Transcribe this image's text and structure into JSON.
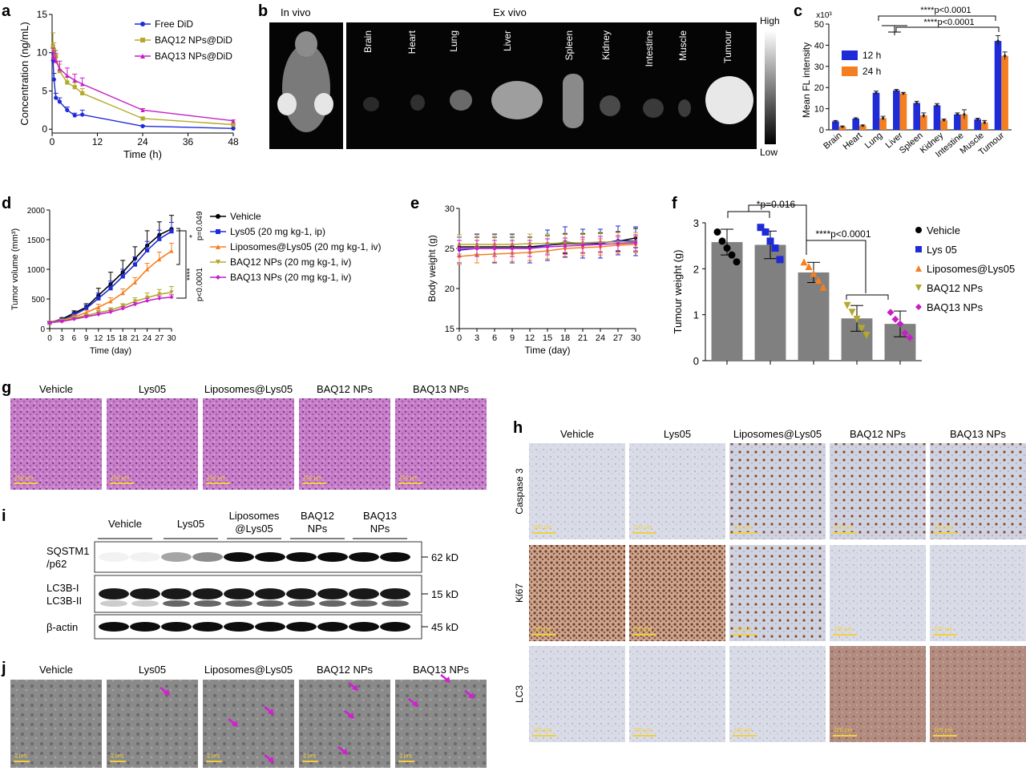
{
  "panels": {
    "a": "a",
    "b": "b",
    "c": "c",
    "d": "d",
    "e": "e",
    "f": "f",
    "g": "g",
    "h": "h",
    "i": "i",
    "j": "j"
  },
  "colors": {
    "blue": "#1f2bd6",
    "olive": "#b5a92a",
    "magenta": "#c61fc6",
    "orange": "#f57f20",
    "black": "#000000",
    "fblue": "#1f2bd6",
    "forange": "#f57f20",
    "bar": "#808080"
  },
  "panel_b": {
    "in_vivo": "In vivo",
    "ex_vivo": "Ex vivo",
    "organs": [
      "Brain",
      "Heart",
      "Lung",
      "Liver",
      "Spleen",
      "Kidney",
      "Intestine",
      "Muscle",
      "Tumour"
    ],
    "scale_high": "High",
    "scale_low": "Low"
  },
  "panel_g": {
    "labels": [
      "Vehicle",
      "Lys05",
      "Liposomes@Lys05",
      "BAQ12 NPs",
      "BAQ13 NPs"
    ],
    "scalebar": "100 μm"
  },
  "panel_h": {
    "columns": [
      "Vehicle",
      "Lys05",
      "Liposomes@Lys05",
      "BAQ12 NPs",
      "BAQ13 NPs"
    ],
    "rows": [
      "Caspase 3",
      "Ki67",
      "LC3"
    ],
    "scalebar": "100 μm"
  },
  "panel_i": {
    "groups": [
      "Vehicle",
      "Lys05",
      "Liposomes\n@Lys05",
      "BAQ12\nNPs",
      "BAQ13\nNPs"
    ],
    "rows": [
      {
        "label": "SQSTM1\n/p62",
        "size": "62 kD"
      },
      {
        "label": "LC3B-I\nLC3B-II",
        "size": "15 kD"
      },
      {
        "label": "β-actin",
        "size": "45 kD"
      }
    ]
  },
  "panel_j": {
    "labels": [
      "Vehicle",
      "Lys05",
      "Liposomes@Lys05",
      "BAQ12 NPs",
      "BAQ13 NPs"
    ],
    "scalebar": "2 μm"
  },
  "chart_data": [
    {
      "panel": "a",
      "type": "line",
      "xlabel": "Time (h)",
      "ylabel": "Concentration (ng/mL)",
      "xlim": [
        0,
        48
      ],
      "ylim": [
        0,
        15
      ],
      "xticks": [
        0,
        12,
        24,
        36,
        48
      ],
      "yticks": [
        0,
        5,
        10,
        15
      ],
      "legend_position": "top-right",
      "series": [
        {
          "name": "Free DiD",
          "color": "blue",
          "x": [
            0.25,
            0.5,
            1,
            2,
            4,
            6,
            8,
            24,
            48
          ],
          "y": [
            9.0,
            6.5,
            4.1,
            3.6,
            2.5,
            1.8,
            1.9,
            0.4,
            0.1
          ],
          "err": [
            1.0,
            0.8,
            0.6,
            0.5,
            0.4,
            0.3,
            0.6,
            0.1,
            0.05
          ]
        },
        {
          "name": "BAQ12 NPs@DiD",
          "color": "olive",
          "x": [
            0.25,
            0.5,
            1,
            2,
            4,
            6,
            8,
            24,
            48
          ],
          "y": [
            10.8,
            10.3,
            9.5,
            7.6,
            6.1,
            5.5,
            4.7,
            1.4,
            0.6
          ],
          "err": [
            1.8,
            1.0,
            0.8,
            0.9,
            0.8,
            0.6,
            0.6,
            0.15,
            0.1
          ]
        },
        {
          "name": "BAQ13 NPs@DiD",
          "color": "magenta",
          "x": [
            0.25,
            0.5,
            1,
            2,
            4,
            6,
            8,
            24,
            48
          ],
          "y": [
            9.6,
            9.3,
            8.9,
            7.9,
            7.0,
            6.4,
            5.9,
            2.5,
            1.1
          ],
          "err": [
            1.0,
            0.9,
            1.0,
            1.0,
            1.0,
            0.8,
            0.8,
            0.2,
            0.1
          ]
        }
      ]
    },
    {
      "panel": "c",
      "type": "bar",
      "ylabel": "Mean FL intensity",
      "yunit": "x10³",
      "ylim": [
        0,
        50
      ],
      "yticks": [
        0,
        10,
        20,
        30,
        40,
        50
      ],
      "categories": [
        "Brain",
        "Heart",
        "Lung",
        "Liver",
        "Spleen",
        "Kidney",
        "Intestine",
        "Muscle",
        "Tumour"
      ],
      "legend_position": "top-left",
      "series": [
        {
          "name": "12 h",
          "color": "fblue",
          "values": [
            4.0,
            5.3,
            17.5,
            18.6,
            12.7,
            11.6,
            7.3,
            5.0,
            42.0
          ],
          "err": [
            0.4,
            0.4,
            0.8,
            0.5,
            0.8,
            0.8,
            0.7,
            0.5,
            2.5
          ]
        },
        {
          "name": "24 h",
          "color": "forange",
          "values": [
            1.5,
            2.0,
            5.5,
            17.2,
            6.8,
            4.6,
            7.3,
            3.5,
            35.0
          ],
          "err": [
            0.3,
            0.3,
            0.9,
            0.5,
            1.2,
            0.5,
            2.2,
            0.9,
            1.8
          ]
        }
      ],
      "annotations": [
        "****p<0.0001",
        "****p<0.0001"
      ]
    },
    {
      "panel": "d",
      "type": "line",
      "xlabel": "Time (day)",
      "ylabel": "Tumor volume (mm³)",
      "xlim": [
        0,
        30
      ],
      "ylim": [
        0,
        2000
      ],
      "xticks": [
        0,
        3,
        6,
        9,
        12,
        15,
        18,
        21,
        24,
        27,
        30
      ],
      "yticks": [
        0,
        500,
        1000,
        1500,
        2000
      ],
      "legend_position": "right",
      "x": [
        0,
        3,
        6,
        9,
        12,
        15,
        18,
        21,
        24,
        27,
        30
      ],
      "series": [
        {
          "name": "Vehicle",
          "color": "black",
          "marker": "circle",
          "values": [
            100,
            160,
            260,
            360,
            560,
            750,
            950,
            1180,
            1400,
            1580,
            1680
          ],
          "err": [
            20,
            25,
            40,
            60,
            120,
            200,
            200,
            200,
            250,
            220,
            230
          ]
        },
        {
          "name": "Lys05  (20 mg kg-1, ip)",
          "color": "blue",
          "marker": "square",
          "values": [
            100,
            150,
            230,
            340,
            510,
            680,
            880,
            1080,
            1320,
            1510,
            1640
          ],
          "err": [
            20,
            25,
            40,
            55,
            90,
            120,
            120,
            130,
            150,
            150,
            150
          ]
        },
        {
          "name": "Liposomes@Lys05 (20 mg kg-1, iv)",
          "color": "orange",
          "marker": "triangle",
          "values": [
            100,
            140,
            200,
            270,
            360,
            460,
            600,
            780,
            1000,
            1170,
            1310
          ],
          "err": [
            15,
            20,
            30,
            40,
            50,
            60,
            70,
            80,
            100,
            120,
            130
          ]
        },
        {
          "name": "BAQ12 NPs (20 mg kg-1, iv)",
          "color": "olive",
          "marker": "triangle-down",
          "values": [
            100,
            130,
            180,
            220,
            270,
            310,
            380,
            460,
            520,
            580,
            610
          ],
          "err": [
            15,
            20,
            25,
            30,
            40,
            40,
            40,
            60,
            80,
            80,
            100
          ]
        },
        {
          "name": "BAQ13 NPs (20 mg kg-1, iv)",
          "color": "magenta",
          "marker": "diamond",
          "values": [
            100,
            120,
            160,
            200,
            240,
            280,
            340,
            410,
            470,
            510,
            530
          ],
          "err": [
            15,
            20,
            20,
            25,
            30,
            30,
            30,
            30,
            40,
            40,
            40
          ]
        }
      ],
      "annotations": [
        "*",
        "p=0.049",
        "****",
        "p<0.0001"
      ]
    },
    {
      "panel": "e",
      "type": "line",
      "xlabel": "Time (day)",
      "ylabel": "Body weight (g)",
      "xlim": [
        0,
        30
      ],
      "ylim": [
        15,
        30
      ],
      "xticks": [
        0,
        3,
        6,
        9,
        12,
        15,
        18,
        21,
        24,
        27,
        30
      ],
      "yticks": [
        15,
        20,
        25,
        30
      ],
      "x": [
        0,
        3,
        6,
        9,
        12,
        15,
        18,
        21,
        24,
        27,
        30
      ],
      "series": [
        {
          "color": "black",
          "values": [
            25.2,
            25.2,
            25.2,
            25.2,
            25.2,
            25.4,
            25.6,
            25.6,
            25.7,
            25.9,
            26.3
          ],
          "err": [
            1.2,
            1.2,
            1.2,
            1.2,
            1.2,
            1.2,
            1.2,
            1.2,
            1.2,
            1.2,
            1.2
          ]
        },
        {
          "color": "blue",
          "values": [
            24.8,
            25.0,
            25.0,
            25.0,
            25.0,
            25.4,
            25.8,
            25.6,
            25.6,
            26.0,
            25.9
          ],
          "err": [
            1.6,
            1.8,
            1.8,
            1.8,
            1.8,
            1.9,
            1.9,
            1.8,
            1.8,
            1.8,
            1.8
          ]
        },
        {
          "color": "orange",
          "values": [
            24.0,
            24.2,
            24.3,
            24.4,
            24.5,
            24.7,
            25.0,
            25.1,
            25.2,
            25.4,
            25.5
          ],
          "err": [
            1.0,
            1.0,
            1.0,
            1.0,
            1.0,
            1.0,
            1.0,
            1.0,
            1.0,
            1.0,
            1.0
          ]
        },
        {
          "color": "olive",
          "values": [
            25.5,
            25.5,
            25.5,
            25.5,
            25.6,
            25.6,
            25.7,
            25.7,
            25.8,
            25.8,
            25.8
          ],
          "err": [
            1.2,
            1.2,
            1.2,
            1.2,
            1.2,
            1.2,
            1.2,
            1.2,
            1.2,
            1.2,
            1.2
          ]
        },
        {
          "color": "magenta",
          "values": [
            25.0,
            25.0,
            25.0,
            25.0,
            25.0,
            25.2,
            25.3,
            25.4,
            25.5,
            25.6,
            25.7
          ],
          "err": [
            1.0,
            1.0,
            1.0,
            1.0,
            1.0,
            1.0,
            1.0,
            1.0,
            1.0,
            1.0,
            1.0
          ]
        }
      ]
    },
    {
      "panel": "f",
      "type": "bar",
      "ylabel": "Tumour weight (g)",
      "ylim": [
        0,
        3
      ],
      "yticks": [
        0,
        1,
        2,
        3
      ],
      "categories": [
        "Vehicle",
        "Lys 05",
        "Liposomes@Lys05",
        "BAQ12 NPs",
        "BAQ13 NPs"
      ],
      "values": [
        2.58,
        2.52,
        1.92,
        0.92,
        0.8
      ],
      "err": [
        0.28,
        0.3,
        0.22,
        0.28,
        0.28
      ],
      "legend_position": "right",
      "points": [
        {
          "marker": "circle",
          "color": "black",
          "y": [
            2.8,
            2.6,
            2.45,
            2.3,
            2.15
          ]
        },
        {
          "marker": "square",
          "color": "blue",
          "y": [
            2.9,
            2.8,
            2.6,
            2.45,
            2.2
          ]
        },
        {
          "marker": "triangle",
          "color": "orange",
          "y": [
            2.15,
            2.05,
            1.9,
            1.75,
            1.6
          ]
        },
        {
          "marker": "triangle-down",
          "color": "olive",
          "y": [
            1.2,
            1.05,
            0.9,
            0.7,
            0.55
          ]
        },
        {
          "marker": "diamond",
          "color": "magenta",
          "y": [
            1.05,
            0.9,
            0.8,
            0.6,
            0.5
          ]
        }
      ],
      "annotations": [
        "*p=0.016",
        "****p<0.0001"
      ]
    }
  ]
}
